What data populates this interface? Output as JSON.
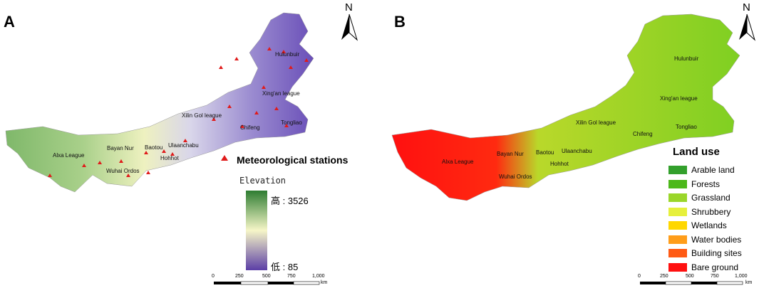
{
  "panels": {
    "a": {
      "letter": "A",
      "cities": [
        "Hulunbuir",
        "Xing'an league",
        "Xilin Gol league",
        "Chifeng",
        "Tongliao",
        "Bayan Nur",
        "Baotou",
        "Ulaanchabu",
        "Hohhot",
        "Alxa League",
        "Wuhai Ordos"
      ],
      "stations_label": "Meteorological stations",
      "elevation": {
        "title": "Elevation",
        "high": "高 : 3526",
        "low": "低 : 85",
        "colors": {
          "high": "#2e7d32",
          "mid": "#f6f6c8",
          "low": "#5b3ea6"
        }
      }
    },
    "b": {
      "letter": "B",
      "cities": [
        "Hulunbuir",
        "Xing'an league",
        "Xilin Gol league",
        "Chifeng",
        "Tongliao",
        "Bayan Nur",
        "Baotou",
        "Ulaanchabu",
        "Hohhot",
        "Alxa League",
        "Wuhai Ordos"
      ],
      "legend_title": "Land use",
      "landuse": [
        {
          "label": "Arable land",
          "color": "#33a02c"
        },
        {
          "label": "Forests",
          "color": "#4cb81a"
        },
        {
          "label": "Grassland",
          "color": "#9ad62a"
        },
        {
          "label": "Shrubbery",
          "color": "#e6f03c"
        },
        {
          "label": "Wetlands",
          "color": "#ffd700"
        },
        {
          "label": "Water bodies",
          "color": "#ff9d1a"
        },
        {
          "label": "Building sites",
          "color": "#ff5a14"
        },
        {
          "label": "Bare ground",
          "color": "#ff1010"
        }
      ]
    }
  },
  "north": "N",
  "scale": {
    "ticks": [
      "0",
      "250",
      "500",
      "750",
      "1,000"
    ],
    "unit": "km"
  }
}
